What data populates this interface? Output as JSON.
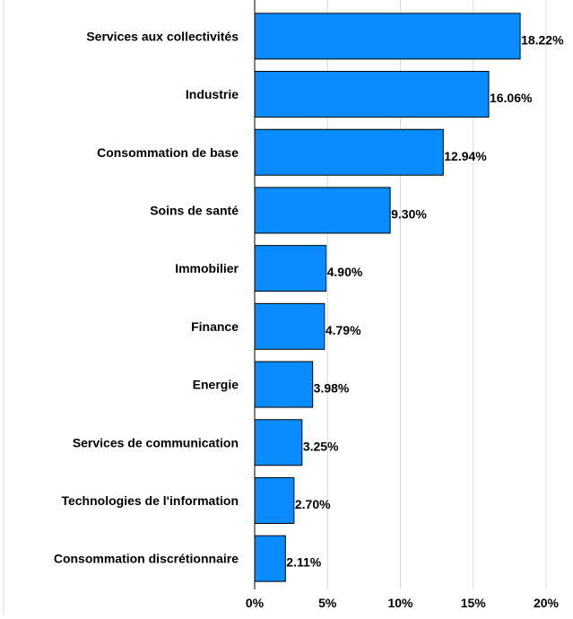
{
  "colors": {
    "bar": "#0A8CFF",
    "bar_stroke": "#000000",
    "grid": "#D9D9D9",
    "axis": "#000000",
    "text": "#000000"
  },
  "chart_data": {
    "type": "bar",
    "orientation": "horizontal",
    "title": "",
    "xlabel": "",
    "ylabel": "",
    "xlim": [
      0,
      20
    ],
    "grid": true,
    "categories": [
      "Services aux collectivités",
      "Industrie",
      "Consommation de base",
      "Soins de santé",
      "Immobilier",
      "Finance",
      "Energie",
      "Services de communication",
      "Technologies de l'information",
      "Consommation discrétionnaire"
    ],
    "values": [
      18.22,
      16.06,
      12.94,
      9.3,
      4.9,
      4.79,
      3.98,
      3.25,
      2.7,
      2.11
    ],
    "value_labels": [
      "18.22%",
      "16.06%",
      "12.94%",
      "9.30%",
      "4.90%",
      "4.79%",
      "3.98%",
      "3.25%",
      "2.70%",
      "2.11%"
    ],
    "x_ticks": [
      0,
      5,
      10,
      15,
      20
    ],
    "x_tick_labels": [
      "0%",
      "5%",
      "10%",
      "15%",
      "20%"
    ]
  }
}
